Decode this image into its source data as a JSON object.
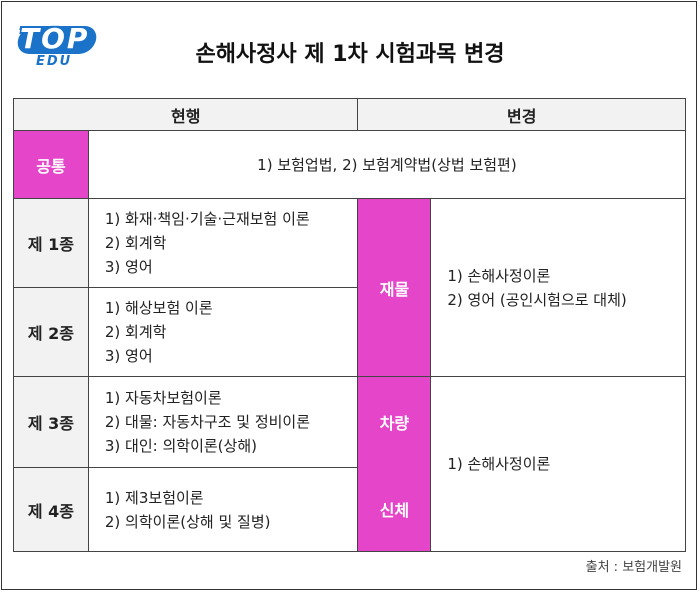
{
  "logo": {
    "top": "TOP",
    "edu": "EDU"
  },
  "title": "손해사정사 제 1차 시험과목 변경",
  "header": {
    "current": "현행",
    "changed": "변경"
  },
  "common": {
    "label": "공통",
    "text": "1) 보험업법, 2) 보험계약법(상법 보험편)"
  },
  "rows": [
    {
      "grade": "제 1종",
      "subjects": [
        "1) 화재·책임·기술·근재보험 이론",
        "2) 회계학",
        "3) 영어"
      ]
    },
    {
      "grade": "제 2종",
      "subjects": [
        "1) 해상보험 이론",
        "2) 회계학",
        "3) 영어"
      ]
    },
    {
      "grade": "제 3종",
      "subjects": [
        "1) 자동차보험이론",
        "2) 대물: 자동차구조 및 정비이론",
        "3) 대인: 의학이론(상해)"
      ]
    },
    {
      "grade": "제 4종",
      "subjects": [
        "1) 제3보험이론",
        "2) 의학이론(상해 및 질병)"
      ]
    }
  ],
  "changes": {
    "property": {
      "label": "재물",
      "subjects": [
        "1) 손해사정이론",
        "2) 영어 (공인시험으로 대체)"
      ]
    },
    "vehicle_label": "차량",
    "body_label": "신체",
    "vehicle_body_subjects": [
      "1) 손해사정이론"
    ]
  },
  "source": "출처 : 보험개발원",
  "colors": {
    "accent": "#e545c9",
    "header_bg": "#f2f2f2",
    "logo_blue": "#1a73c9"
  }
}
